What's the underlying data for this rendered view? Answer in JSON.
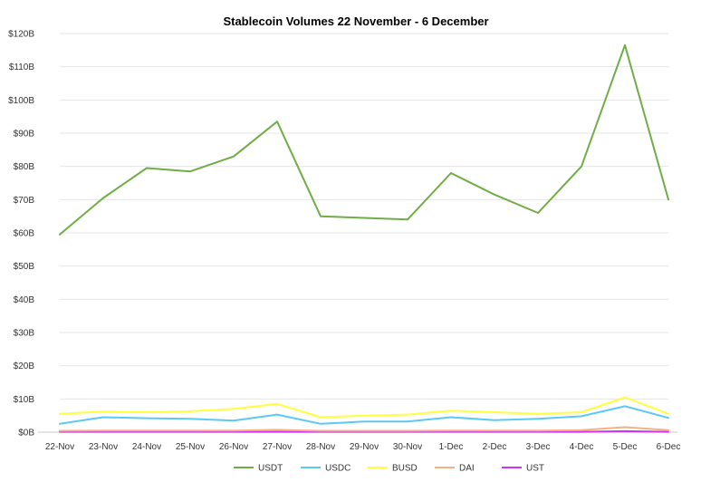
{
  "chart_data": {
    "type": "line",
    "title": "Stablecoin Volumes 22 November - 6 December",
    "xlabel": "",
    "ylabel": "",
    "categories": [
      "22-Nov",
      "23-Nov",
      "24-Nov",
      "25-Nov",
      "26-Nov",
      "27-Nov",
      "28-Nov",
      "29-Nov",
      "30-Nov",
      "1-Dec",
      "2-Dec",
      "3-Dec",
      "4-Dec",
      "5-Dec",
      "6-Dec"
    ],
    "ylim": [
      0,
      120
    ],
    "yticks": [
      0,
      10,
      20,
      30,
      40,
      50,
      60,
      70,
      80,
      90,
      100,
      110,
      120
    ],
    "ytick_labels": [
      "$0B",
      "$10B",
      "$20B",
      "$30B",
      "$40B",
      "$50B",
      "$60B",
      "$70B",
      "$80B",
      "$90B",
      "$100B",
      "$110B",
      "$120B"
    ],
    "grid": true,
    "legend_position": "bottom",
    "series": [
      {
        "name": "USDT",
        "color": "#70ad47",
        "values": [
          59.5,
          70.5,
          79.5,
          78.5,
          83,
          93.5,
          65,
          64.5,
          64,
          78,
          71.5,
          66,
          80,
          116.5,
          70
        ]
      },
      {
        "name": "USDC",
        "color": "#5bc8f5",
        "values": [
          2.5,
          4.5,
          4.2,
          4.0,
          3.5,
          5.3,
          2.5,
          3.2,
          3.2,
          4.5,
          3.6,
          4.0,
          4.8,
          7.8,
          4.3
        ]
      },
      {
        "name": "BUSD",
        "color": "#ffff3b",
        "values": [
          5.5,
          6.2,
          6.0,
          6.3,
          7.0,
          8.5,
          4.5,
          5.0,
          5.3,
          6.5,
          6.0,
          5.5,
          6.0,
          10.5,
          5.5
        ]
      },
      {
        "name": "DAI",
        "color": "#f4b183",
        "values": [
          0.4,
          0.5,
          0.5,
          0.5,
          0.5,
          0.7,
          0.4,
          0.4,
          0.4,
          0.5,
          0.5,
          0.5,
          0.6,
          1.5,
          0.6
        ]
      },
      {
        "name": "UST",
        "color": "#cc33ff",
        "values": [
          0.1,
          0.1,
          0.1,
          0.1,
          0.1,
          0.1,
          0.1,
          0.1,
          0.1,
          0.1,
          0.1,
          0.1,
          0.1,
          0.3,
          0.1
        ]
      }
    ]
  }
}
